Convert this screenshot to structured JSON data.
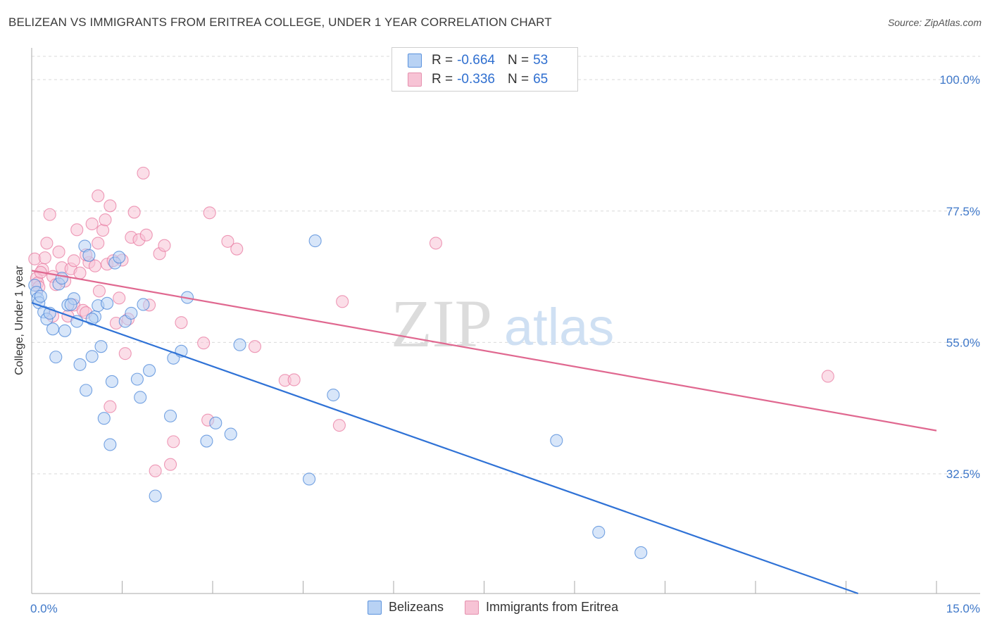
{
  "header": {
    "title": "BELIZEAN VS IMMIGRANTS FROM ERITREA COLLEGE, UNDER 1 YEAR CORRELATION CHART",
    "source": "Source: ZipAtlas.com"
  },
  "legend": {
    "r_label": "R = ",
    "n_label": "N = ",
    "rows": [
      {
        "r": "-0.664",
        "n": "53"
      },
      {
        "r": "-0.336",
        "n": "65"
      }
    ]
  },
  "watermark": {
    "zip": "ZIP",
    "atlas": "atlas"
  },
  "chart_data": {
    "type": "scatter",
    "title": "BELIZEAN VS IMMIGRANTS FROM ERITREA COLLEGE, UNDER 1 YEAR CORRELATION CHART",
    "xlabel": "",
    "ylabel": "College, Under 1 year",
    "xlim": [
      0,
      15
    ],
    "ylim": [
      12,
      104
    ],
    "x_tick_labels": [
      "0.0%",
      "15.0%"
    ],
    "y_ticks": [
      32.5,
      55.0,
      77.5,
      100.0
    ],
    "y_tick_labels": [
      "32.5%",
      "55.0%",
      "77.5%",
      "100.0%"
    ],
    "colors": {
      "belizeans": "#4a86d8",
      "eritrea": "#e87aa0",
      "belizeans_fill": "#b8d2f4",
      "eritrea_fill": "#f7c3d5",
      "tick_label": "#3f78c9"
    },
    "series": [
      {
        "name": "Belizeans",
        "trend": {
          "x0": 0.0,
          "y0": 61.8,
          "x1": 13.7,
          "y1": 12.0
        },
        "points": [
          [
            0.05,
            64.8
          ],
          [
            0.08,
            63.6
          ],
          [
            0.1,
            62.5
          ],
          [
            0.12,
            61.8
          ],
          [
            0.15,
            62.9
          ],
          [
            0.2,
            60.2
          ],
          [
            0.25,
            59.0
          ],
          [
            0.35,
            57.3
          ],
          [
            0.4,
            52.5
          ],
          [
            0.45,
            65.0
          ],
          [
            0.55,
            57.0
          ],
          [
            0.6,
            61.4
          ],
          [
            0.7,
            62.5
          ],
          [
            0.75,
            58.6
          ],
          [
            0.8,
            51.2
          ],
          [
            0.88,
            71.5
          ],
          [
            0.9,
            46.8
          ],
          [
            0.95,
            69.9
          ],
          [
            1.0,
            52.6
          ],
          [
            1.05,
            59.4
          ],
          [
            1.1,
            61.3
          ],
          [
            1.15,
            54.3
          ],
          [
            1.2,
            42.0
          ],
          [
            1.25,
            61.7
          ],
          [
            1.3,
            37.5
          ],
          [
            1.33,
            48.3
          ],
          [
            1.38,
            68.6
          ],
          [
            1.45,
            69.6
          ],
          [
            1.55,
            58.6
          ],
          [
            1.65,
            60.0
          ],
          [
            1.75,
            48.7
          ],
          [
            1.8,
            45.6
          ],
          [
            1.85,
            61.5
          ],
          [
            1.95,
            50.2
          ],
          [
            2.05,
            28.7
          ],
          [
            2.3,
            42.4
          ],
          [
            2.35,
            52.3
          ],
          [
            2.48,
            53.5
          ],
          [
            2.58,
            62.7
          ],
          [
            2.9,
            38.1
          ],
          [
            3.05,
            41.2
          ],
          [
            3.3,
            39.3
          ],
          [
            3.45,
            54.6
          ],
          [
            4.6,
            31.6
          ],
          [
            4.7,
            72.4
          ],
          [
            5.0,
            46.0
          ],
          [
            8.7,
            38.2
          ],
          [
            9.4,
            22.5
          ],
          [
            10.1,
            19.0
          ],
          [
            0.3,
            60.0
          ],
          [
            0.5,
            66.0
          ],
          [
            1.0,
            59.0
          ],
          [
            0.65,
            61.5
          ]
        ]
      },
      {
        "name": "Immigrants from Eritrea",
        "trend": {
          "x0": 0.0,
          "y0": 67.3,
          "x1": 15.0,
          "y1": 39.9
        },
        "points": [
          [
            0.05,
            69.3
          ],
          [
            0.08,
            66.0
          ],
          [
            0.1,
            65.2
          ],
          [
            0.12,
            64.5
          ],
          [
            0.18,
            67.5
          ],
          [
            0.22,
            69.5
          ],
          [
            0.25,
            72.0
          ],
          [
            0.3,
            76.9
          ],
          [
            0.35,
            66.3
          ],
          [
            0.4,
            64.9
          ],
          [
            0.45,
            70.5
          ],
          [
            0.5,
            67.8
          ],
          [
            0.55,
            65.5
          ],
          [
            0.6,
            59.5
          ],
          [
            0.65,
            67.6
          ],
          [
            0.7,
            61.4
          ],
          [
            0.75,
            74.3
          ],
          [
            0.8,
            66.9
          ],
          [
            0.85,
            60.5
          ],
          [
            0.9,
            60.1
          ],
          [
            0.95,
            68.7
          ],
          [
            1.0,
            75.3
          ],
          [
            1.05,
            68.1
          ],
          [
            1.1,
            80.1
          ],
          [
            1.12,
            63.8
          ],
          [
            1.18,
            74.2
          ],
          [
            1.22,
            76.0
          ],
          [
            1.25,
            68.4
          ],
          [
            1.3,
            78.4
          ],
          [
            1.35,
            69.0
          ],
          [
            1.4,
            58.3
          ],
          [
            1.45,
            62.6
          ],
          [
            1.5,
            69.1
          ],
          [
            1.55,
            53.1
          ],
          [
            1.6,
            59.0
          ],
          [
            1.65,
            73.0
          ],
          [
            1.7,
            77.3
          ],
          [
            1.78,
            72.6
          ],
          [
            1.85,
            84.0
          ],
          [
            1.9,
            73.4
          ],
          [
            1.95,
            61.4
          ],
          [
            2.05,
            33.0
          ],
          [
            2.12,
            70.2
          ],
          [
            2.2,
            71.6
          ],
          [
            2.3,
            34.1
          ],
          [
            2.35,
            38.0
          ],
          [
            2.48,
            58.4
          ],
          [
            2.85,
            54.9
          ],
          [
            2.92,
            41.7
          ],
          [
            2.95,
            77.2
          ],
          [
            3.25,
            72.3
          ],
          [
            3.4,
            71.0
          ],
          [
            3.7,
            54.3
          ],
          [
            4.2,
            48.5
          ],
          [
            4.35,
            48.6
          ],
          [
            5.1,
            40.8
          ],
          [
            5.15,
            62.0
          ],
          [
            6.7,
            72.0
          ],
          [
            13.2,
            49.2
          ],
          [
            1.3,
            44.0
          ],
          [
            0.15,
            67.0
          ],
          [
            0.9,
            70.0
          ],
          [
            1.1,
            72.0
          ],
          [
            0.7,
            69.0
          ],
          [
            0.35,
            59.5
          ]
        ]
      }
    ]
  },
  "bottom_legend": {
    "items": [
      {
        "label": "Belizeans"
      },
      {
        "label": "Immigrants from Eritrea"
      }
    ]
  }
}
